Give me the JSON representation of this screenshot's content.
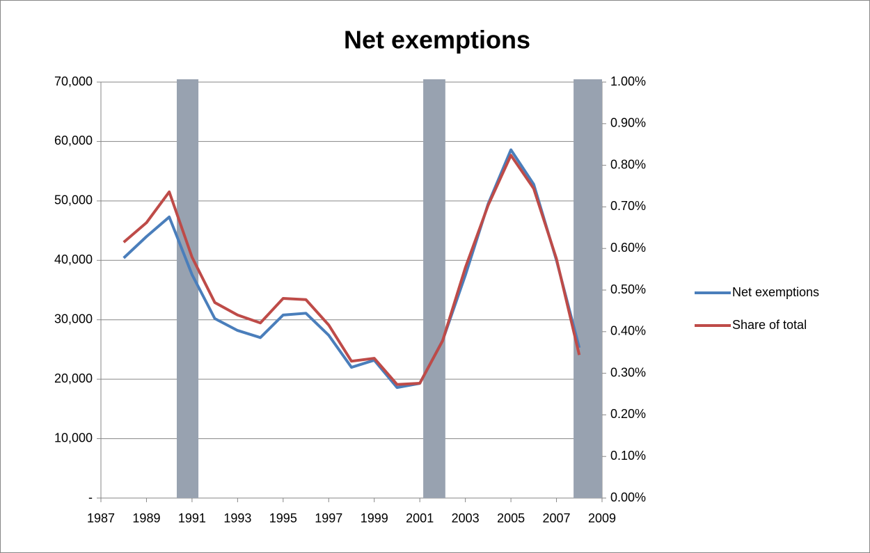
{
  "chart_data": {
    "type": "line",
    "title": "Net exemptions",
    "x": [
      1988,
      1989,
      1990,
      1991,
      1992,
      1993,
      1994,
      1995,
      1996,
      1997,
      1998,
      1999,
      2000,
      2001,
      2002,
      2003,
      2004,
      2005,
      2006,
      2007,
      2008
    ],
    "series": [
      {
        "name": "Net exemptions",
        "color": "#4a7ebb",
        "values": [
          40400,
          44000,
          47300,
          37600,
          30200,
          28200,
          27000,
          30800,
          31100,
          27400,
          22000,
          23200,
          18600,
          19300,
          26500,
          37500,
          49500,
          58600,
          52800,
          40000,
          25300
        ]
      },
      {
        "name": "Share of total",
        "color": "#be4b48",
        "axis": "y2",
        "values": [
          0.615,
          0.662,
          0.736,
          0.579,
          0.47,
          0.44,
          0.421,
          0.48,
          0.477,
          0.416,
          0.329,
          0.336,
          0.273,
          0.276,
          0.378,
          0.554,
          0.704,
          0.824,
          0.744,
          0.575,
          0.344
        ]
      }
    ],
    "shaded_ranges": [
      [
        1990.33,
        1991.28
      ],
      [
        2001.15,
        2002.12
      ],
      [
        2007.75,
        2009
      ]
    ],
    "shade_color": "#98a2b0",
    "xlim": [
      1987,
      2009
    ],
    "xticks": [
      1987,
      1989,
      1991,
      1993,
      1995,
      1997,
      1999,
      2001,
      2003,
      2005,
      2007,
      2009
    ],
    "ylim": [
      0,
      70000
    ],
    "yticks": [
      {
        "value": 0,
        "label": "-"
      },
      {
        "value": 10000,
        "label": "10,000"
      },
      {
        "value": 20000,
        "label": "20,000"
      },
      {
        "value": 30000,
        "label": "30,000"
      },
      {
        "value": 40000,
        "label": "40,000"
      },
      {
        "value": 50000,
        "label": "50,000"
      },
      {
        "value": 60000,
        "label": "60,000"
      },
      {
        "value": 70000,
        "label": "70,000"
      }
    ],
    "y2lim": [
      0,
      1
    ],
    "y2ticks": [
      {
        "value": 0,
        "label": "0.00%"
      },
      {
        "value": 0.1,
        "label": "0.10%"
      },
      {
        "value": 0.2,
        "label": "0.20%"
      },
      {
        "value": 0.3,
        "label": "0.30%"
      },
      {
        "value": 0.4,
        "label": "0.40%"
      },
      {
        "value": 0.5,
        "label": "0.50%"
      },
      {
        "value": 0.6,
        "label": "0.60%"
      },
      {
        "value": 0.7,
        "label": "0.70%"
      },
      {
        "value": 0.8,
        "label": "0.80%"
      },
      {
        "value": 0.9,
        "label": "0.90%"
      },
      {
        "value": 1,
        "label": "1.00%"
      }
    ],
    "grid": true,
    "legend": "right"
  }
}
